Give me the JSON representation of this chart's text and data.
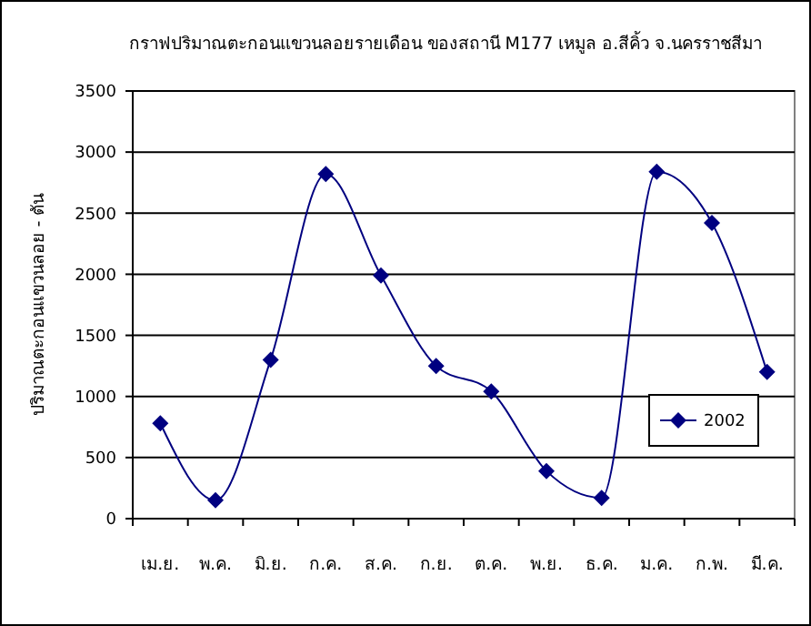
{
  "chart_data": {
    "type": "line",
    "title": "กราฟปริมาณตะกอนแขวนลอยรายเดือน ของสถานี M177 เหมูล อ.สีคิ้ว จ.นครราชสีมา",
    "ylabel": "ปริมาณตะกอนแขวนลอย - ตัน",
    "categories": [
      "เม.ย.",
      "พ.ค.",
      "มิ.ย.",
      "ก.ค.",
      "ส.ค.",
      "ก.ย.",
      "ต.ค.",
      "พ.ย.",
      "ธ.ค.",
      "ม.ค.",
      "ก.พ.",
      "มี.ค."
    ],
    "series": [
      {
        "name": "2002",
        "color": "#000080",
        "values": [
          780,
          150,
          1300,
          2820,
          1990,
          1250,
          1040,
          390,
          170,
          2840,
          2420,
          1200
        ]
      }
    ],
    "ylim": [
      0,
      3500
    ],
    "yticks": [
      0,
      500,
      1000,
      1500,
      2000,
      2500,
      3000,
      3500
    ],
    "grid": "y",
    "legend": "right",
    "marker": "diamond",
    "line_style": "solid"
  }
}
